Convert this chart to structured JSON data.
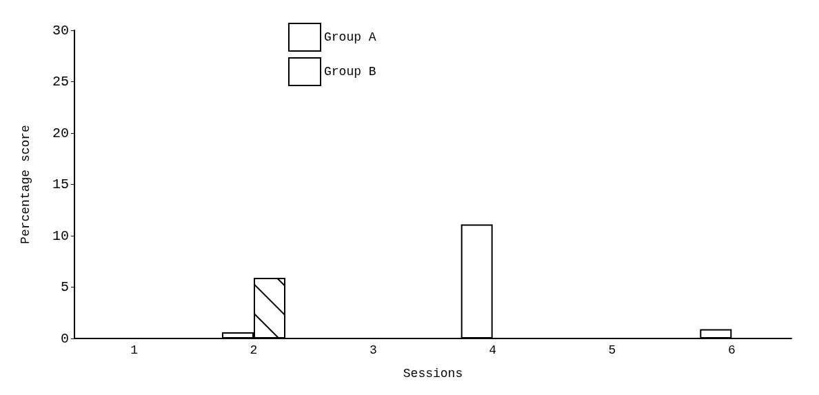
{
  "chart_data": {
    "type": "bar",
    "xlabel": "Sessions",
    "ylabel": "Percentage score",
    "categories": [
      "1",
      "2",
      "3",
      "4",
      "5",
      "6"
    ],
    "series": [
      {
        "name": "Group A",
        "color": "#ffffff",
        "values": [
          null,
          0.6,
          null,
          11.1,
          null,
          0.9
        ]
      },
      {
        "name": "Group B",
        "color": "#ffffff",
        "values": [
          null,
          5.9,
          null,
          null,
          null,
          null
        ]
      }
    ],
    "ylim": [
      0,
      30
    ],
    "yticks": [
      0,
      5,
      10,
      15,
      20,
      25,
      30
    ],
    "grid": false,
    "legend": "top left"
  }
}
